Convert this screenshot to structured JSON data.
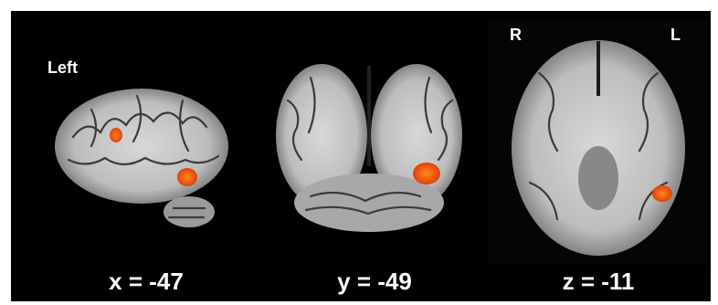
{
  "panels": [
    {
      "caption": "x = -47",
      "orientation": [
        "Left"
      ]
    },
    {
      "caption": "y = -49",
      "orientation": []
    },
    {
      "caption": "z = -11",
      "orientation": [
        "R",
        "L"
      ]
    }
  ]
}
